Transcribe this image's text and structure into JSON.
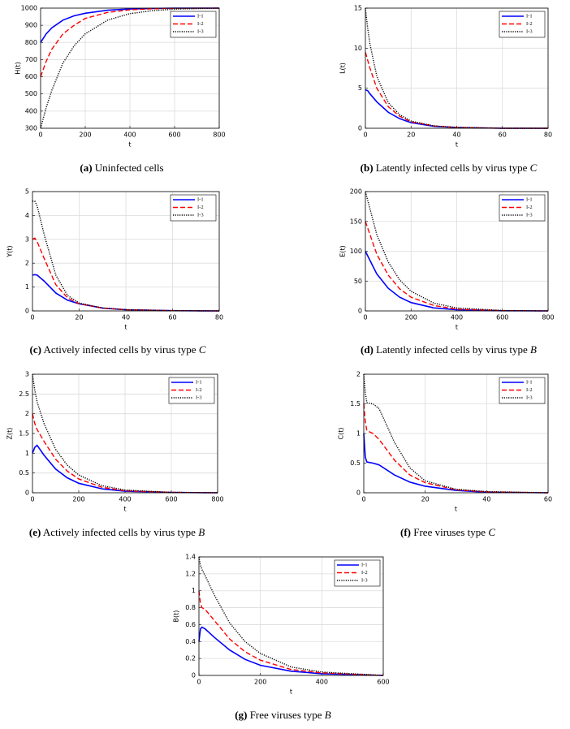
{
  "chart_data": [
    {
      "type": "line",
      "panel": "(a)",
      "caption": "Uninfected cells",
      "xlabel": "t",
      "ylabel": "H(t)",
      "x": [
        0,
        25,
        50,
        100,
        150,
        200,
        300,
        400,
        500,
        600,
        800
      ],
      "series": [
        {
          "name": "I-1",
          "color": "#0000ff",
          "style": "solid",
          "values": [
            800,
            850,
            885,
            930,
            955,
            970,
            988,
            995,
            998,
            1000,
            1000
          ]
        },
        {
          "name": "I-2",
          "color": "#ff0000",
          "style": "dashed",
          "values": [
            600,
            690,
            760,
            850,
            900,
            940,
            975,
            990,
            996,
            999,
            1000
          ]
        },
        {
          "name": "I-3",
          "color": "#000000",
          "style": "dotted",
          "values": [
            300,
            420,
            520,
            680,
            780,
            850,
            930,
            968,
            985,
            994,
            1000
          ]
        }
      ],
      "xlim": [
        0,
        800
      ],
      "ylim": [
        300,
        1000
      ],
      "xticks": [
        0,
        200,
        400,
        600,
        800
      ],
      "yticks": [
        300,
        400,
        500,
        600,
        700,
        800,
        900,
        1000
      ],
      "grid": true,
      "legend": "upper right"
    },
    {
      "type": "line",
      "panel": "(b)",
      "caption": "Latently infected cells by virus type",
      "caption_var": "C",
      "xlabel": "t",
      "ylabel": "L(t)",
      "x": [
        0,
        1,
        2,
        5,
        10,
        15,
        20,
        30,
        40,
        60,
        80
      ],
      "series": [
        {
          "name": "I-1",
          "color": "#0000ff",
          "style": "solid",
          "values": [
            4.8,
            4.7,
            4.3,
            3.3,
            2.0,
            1.2,
            0.7,
            0.25,
            0.1,
            0,
            0
          ]
        },
        {
          "name": "I-2",
          "color": "#ff0000",
          "style": "dashed",
          "values": [
            9.5,
            8.5,
            7.5,
            5.0,
            2.7,
            1.5,
            0.8,
            0.3,
            0.1,
            0,
            0
          ]
        },
        {
          "name": "I-3",
          "color": "#000000",
          "style": "dotted",
          "values": [
            15,
            12.5,
            10.5,
            6.5,
            3.2,
            1.7,
            0.9,
            0.3,
            0.1,
            0,
            0
          ]
        }
      ],
      "xlim": [
        0,
        80
      ],
      "ylim": [
        0,
        15
      ],
      "xticks": [
        0,
        20,
        40,
        60,
        80
      ],
      "yticks": [
        0,
        5,
        10,
        15
      ],
      "grid": true,
      "legend": "upper right"
    },
    {
      "type": "line",
      "panel": "(c)",
      "caption": "Actively infected cells by virus type",
      "caption_var": "C",
      "xlabel": "t",
      "ylabel": "Y(t)",
      "x": [
        0,
        1,
        2,
        5,
        10,
        15,
        20,
        30,
        40,
        60,
        80
      ],
      "series": [
        {
          "name": "I-1",
          "color": "#0000ff",
          "style": "solid",
          "values": [
            1.5,
            1.52,
            1.5,
            1.25,
            0.75,
            0.45,
            0.3,
            0.12,
            0.05,
            0.01,
            0
          ]
        },
        {
          "name": "I-2",
          "color": "#ff0000",
          "style": "dashed",
          "values": [
            3.0,
            3.05,
            2.9,
            2.2,
            1.1,
            0.55,
            0.3,
            0.12,
            0.05,
            0.01,
            0
          ]
        },
        {
          "name": "I-3",
          "color": "#000000",
          "style": "dotted",
          "values": [
            4.6,
            4.6,
            4.4,
            3.2,
            1.5,
            0.65,
            0.33,
            0.12,
            0.05,
            0.01,
            0
          ]
        }
      ],
      "xlim": [
        0,
        80
      ],
      "ylim": [
        0,
        5
      ],
      "xticks": [
        0,
        20,
        40,
        60,
        80
      ],
      "yticks": [
        0,
        1,
        2,
        3,
        4,
        5
      ],
      "grid": true,
      "legend": "upper right"
    },
    {
      "type": "line",
      "panel": "(d)",
      "caption": "Latently infected cells by virus type",
      "caption_var": "B",
      "xlabel": "t",
      "ylabel": "E(t)",
      "x": [
        0,
        50,
        100,
        150,
        200,
        300,
        400,
        600,
        800
      ],
      "series": [
        {
          "name": "I-1",
          "color": "#0000ff",
          "style": "solid",
          "values": [
            100,
            62,
            38,
            23,
            14,
            5,
            2,
            0.3,
            0
          ]
        },
        {
          "name": "I-2",
          "color": "#ff0000",
          "style": "dashed",
          "values": [
            150,
            95,
            60,
            37,
            23,
            9,
            3,
            0.5,
            0
          ]
        },
        {
          "name": "I-3",
          "color": "#000000",
          "style": "dotted",
          "values": [
            200,
            128,
            82,
            52,
            33,
            13,
            5,
            0.7,
            0
          ]
        }
      ],
      "xlim": [
        0,
        800
      ],
      "ylim": [
        0,
        200
      ],
      "xticks": [
        0,
        200,
        400,
        600,
        800
      ],
      "yticks": [
        0,
        50,
        100,
        150,
        200
      ],
      "grid": true,
      "legend": "upper right"
    },
    {
      "type": "line",
      "panel": "(e)",
      "caption": "Actively infected cells by virus type",
      "caption_var": "B",
      "xlabel": "t",
      "ylabel": "Z(t)",
      "x": [
        0,
        10,
        20,
        50,
        100,
        150,
        200,
        300,
        400,
        600,
        800
      ],
      "series": [
        {
          "name": "I-1",
          "color": "#0000ff",
          "style": "solid",
          "values": [
            1.0,
            1.15,
            1.2,
            0.95,
            0.6,
            0.38,
            0.24,
            0.1,
            0.04,
            0.01,
            0
          ]
        },
        {
          "name": "I-2",
          "color": "#ff0000",
          "style": "dashed",
          "values": [
            2.0,
            1.75,
            1.6,
            1.3,
            0.85,
            0.55,
            0.35,
            0.14,
            0.05,
            0.01,
            0
          ]
        },
        {
          "name": "I-3",
          "color": "#000000",
          "style": "dotted",
          "values": [
            3.0,
            2.6,
            2.3,
            1.75,
            1.1,
            0.7,
            0.45,
            0.18,
            0.07,
            0.01,
            0
          ]
        }
      ],
      "xlim": [
        0,
        800
      ],
      "ylim": [
        0,
        3
      ],
      "xticks": [
        0,
        200,
        400,
        600,
        800
      ],
      "yticks": [
        0,
        0.5,
        1,
        1.5,
        2,
        2.5,
        3
      ],
      "grid": true,
      "legend": "upper right"
    },
    {
      "type": "line",
      "panel": "(f)",
      "caption": "Free viruses type",
      "caption_var": "C",
      "xlabel": "t",
      "ylabel": "C(t)",
      "x": [
        0,
        0.5,
        1,
        3,
        5,
        10,
        15,
        20,
        30,
        40,
        60
      ],
      "series": [
        {
          "name": "I-1",
          "color": "#0000ff",
          "style": "solid",
          "values": [
            1.0,
            0.6,
            0.52,
            0.5,
            0.47,
            0.3,
            0.18,
            0.11,
            0.04,
            0.01,
            0
          ]
        },
        {
          "name": "I-2",
          "color": "#ff0000",
          "style": "dashed",
          "values": [
            1.5,
            1.2,
            1.05,
            1.0,
            0.9,
            0.55,
            0.3,
            0.17,
            0.05,
            0.015,
            0
          ]
        },
        {
          "name": "I-3",
          "color": "#000000",
          "style": "dotted",
          "values": [
            2.0,
            1.7,
            1.52,
            1.5,
            1.42,
            0.85,
            0.42,
            0.2,
            0.06,
            0.02,
            0
          ]
        }
      ],
      "xlim": [
        0,
        60
      ],
      "ylim": [
        0,
        2
      ],
      "xticks": [
        0,
        20,
        40,
        60
      ],
      "yticks": [
        0,
        0.5,
        1,
        1.5,
        2
      ],
      "grid": true,
      "legend": "upper right"
    },
    {
      "type": "line",
      "panel": "(g)",
      "caption": "Free viruses type",
      "caption_var": "B",
      "xlabel": "t",
      "ylabel": "B(t)",
      "x": [
        0,
        5,
        10,
        20,
        50,
        100,
        150,
        200,
        300,
        400,
        600
      ],
      "series": [
        {
          "name": "I-1",
          "color": "#0000ff",
          "style": "solid",
          "values": [
            0.4,
            0.55,
            0.57,
            0.55,
            0.45,
            0.3,
            0.19,
            0.12,
            0.05,
            0.02,
            0
          ]
        },
        {
          "name": "I-2",
          "color": "#ff0000",
          "style": "dashed",
          "values": [
            1.0,
            0.85,
            0.8,
            0.78,
            0.65,
            0.43,
            0.28,
            0.18,
            0.07,
            0.03,
            0
          ]
        },
        {
          "name": "I-3",
          "color": "#000000",
          "style": "dotted",
          "values": [
            1.4,
            1.3,
            1.25,
            1.18,
            0.95,
            0.62,
            0.4,
            0.26,
            0.1,
            0.04,
            0
          ]
        }
      ],
      "xlim": [
        0,
        600
      ],
      "ylim": [
        0,
        1.4
      ],
      "xticks": [
        0,
        200,
        400,
        600
      ],
      "yticks": [
        0,
        0.2,
        0.4,
        0.6,
        0.8,
        1,
        1.2,
        1.4
      ],
      "grid": true,
      "legend": "upper right"
    }
  ]
}
